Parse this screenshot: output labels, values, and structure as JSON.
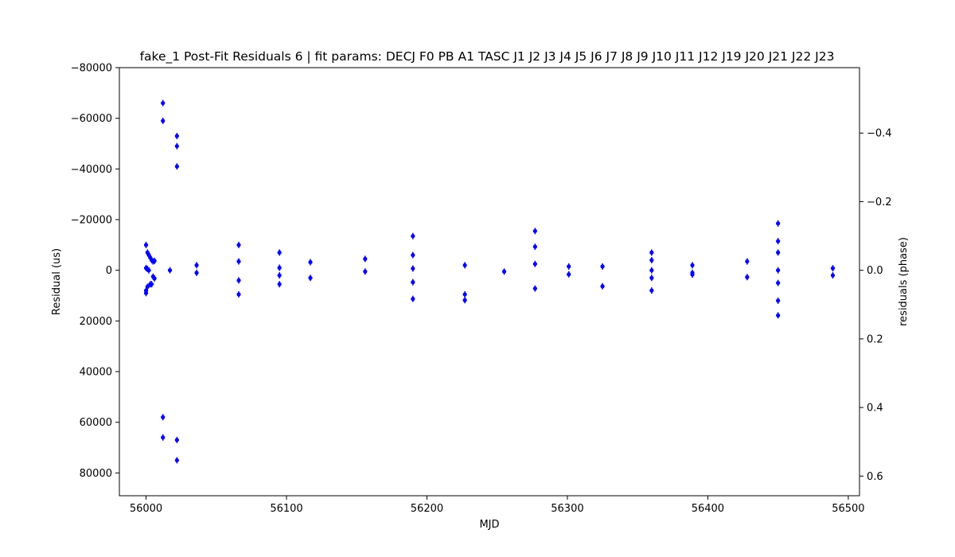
{
  "chart_data": {
    "type": "scatter",
    "title": "fake_1 Post-Fit Residuals 6 | fit params: DECJ F0 PB A1 TASC J1 J2 J3 J4 J5 J6 J7 J8 J9 J10 J11 J12 J19 J20 J21 J22 J23",
    "xlabel": "MJD",
    "ylabel": "Residual (us)",
    "ylabel_right": "residuals (phase)",
    "xlim": [
      55981,
      56508
    ],
    "ylim": [
      89000,
      -80000
    ],
    "ylim_right": [
      0.6573,
      -0.5908
    ],
    "y_inverted": true,
    "grid": false,
    "marker_color": "#0000ff",
    "x_ticks": [
      56000,
      56100,
      56200,
      56300,
      56400,
      56500
    ],
    "x_tick_labels": [
      "56000",
      "56100",
      "56200",
      "56300",
      "56400",
      "56500"
    ],
    "y_ticks": [
      -80000,
      -60000,
      -40000,
      -20000,
      0,
      20000,
      40000,
      60000,
      80000
    ],
    "y_tick_labels": [
      "−80000",
      "−60000",
      "−40000",
      "−20000",
      "0",
      "20000",
      "40000",
      "60000",
      "80000"
    ],
    "y_right_ticks": [
      -0.4,
      -0.2,
      0.0,
      0.2,
      0.4,
      0.6
    ],
    "y_right_tick_labels": [
      "−0.4",
      "−0.2",
      "0.0",
      "0.2",
      "0.4",
      "0.6"
    ],
    "points": [
      {
        "x": 56000,
        "y": -10000
      },
      {
        "x": 56001,
        "y": -7000
      },
      {
        "x": 56002,
        "y": -6000
      },
      {
        "x": 56003,
        "y": -5000
      },
      {
        "x": 56004,
        "y": -4000
      },
      {
        "x": 56005,
        "y": -3500
      },
      {
        "x": 56006,
        "y": -3700
      },
      {
        "x": 56000,
        "y": -900
      },
      {
        "x": 56001,
        "y": -500
      },
      {
        "x": 56002,
        "y": 0
      },
      {
        "x": 56005,
        "y": 2500
      },
      {
        "x": 56006,
        "y": 3200
      },
      {
        "x": 56003,
        "y": 5500
      },
      {
        "x": 56004,
        "y": 5500
      },
      {
        "x": 56001,
        "y": 6500
      },
      {
        "x": 56000,
        "y": 8000
      },
      {
        "x": 56000,
        "y": 9000
      },
      {
        "x": 56012,
        "y": -66000
      },
      {
        "x": 56012,
        "y": -59000
      },
      {
        "x": 56012,
        "y": 58000
      },
      {
        "x": 56012,
        "y": 66000
      },
      {
        "x": 56017,
        "y": 0
      },
      {
        "x": 56022,
        "y": -53000
      },
      {
        "x": 56022,
        "y": -49000
      },
      {
        "x": 56022,
        "y": -41000
      },
      {
        "x": 56022,
        "y": 67000
      },
      {
        "x": 56022,
        "y": 75000
      },
      {
        "x": 56036,
        "y": -2000
      },
      {
        "x": 56036,
        "y": 1000
      },
      {
        "x": 56066,
        "y": -10000
      },
      {
        "x": 56066,
        "y": -3500
      },
      {
        "x": 56066,
        "y": 4000
      },
      {
        "x": 56066,
        "y": 9500
      },
      {
        "x": 56095,
        "y": -7000
      },
      {
        "x": 56095,
        "y": -1000
      },
      {
        "x": 56095,
        "y": 2000
      },
      {
        "x": 56095,
        "y": 5500
      },
      {
        "x": 56117,
        "y": -3200
      },
      {
        "x": 56117,
        "y": 3000
      },
      {
        "x": 56156,
        "y": -4500
      },
      {
        "x": 56156,
        "y": 500
      },
      {
        "x": 56190,
        "y": -13500
      },
      {
        "x": 56190,
        "y": -6000
      },
      {
        "x": 56190,
        "y": -700
      },
      {
        "x": 56190,
        "y": 4700
      },
      {
        "x": 56190,
        "y": 11300
      },
      {
        "x": 56227,
        "y": -2000
      },
      {
        "x": 56227,
        "y": 9500
      },
      {
        "x": 56227,
        "y": 11800
      },
      {
        "x": 56255,
        "y": 500
      },
      {
        "x": 56277,
        "y": -15500
      },
      {
        "x": 56277,
        "y": -9300
      },
      {
        "x": 56277,
        "y": -2500
      },
      {
        "x": 56277,
        "y": 7200
      },
      {
        "x": 56301,
        "y": -1500
      },
      {
        "x": 56301,
        "y": 1600
      },
      {
        "x": 56325,
        "y": -1500
      },
      {
        "x": 56325,
        "y": 6300
      },
      {
        "x": 56360,
        "y": -7000
      },
      {
        "x": 56360,
        "y": -4000
      },
      {
        "x": 56360,
        "y": 0
      },
      {
        "x": 56360,
        "y": 3000
      },
      {
        "x": 56360,
        "y": 8000
      },
      {
        "x": 56389,
        "y": -2000
      },
      {
        "x": 56389,
        "y": 1000
      },
      {
        "x": 56389,
        "y": 1700
      },
      {
        "x": 56428,
        "y": -3500
      },
      {
        "x": 56428,
        "y": 2700
      },
      {
        "x": 56450,
        "y": -18500
      },
      {
        "x": 56450,
        "y": -11500
      },
      {
        "x": 56450,
        "y": -7000
      },
      {
        "x": 56450,
        "y": 0
      },
      {
        "x": 56450,
        "y": 5000
      },
      {
        "x": 56450,
        "y": 12000
      },
      {
        "x": 56450,
        "y": 17800
      },
      {
        "x": 56489,
        "y": -800
      },
      {
        "x": 56489,
        "y": 2000
      }
    ]
  }
}
